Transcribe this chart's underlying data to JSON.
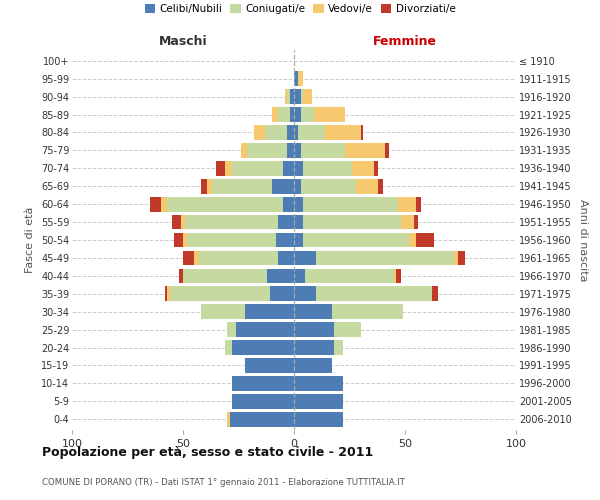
{
  "age_groups": [
    "0-4",
    "5-9",
    "10-14",
    "15-19",
    "20-24",
    "25-29",
    "30-34",
    "35-39",
    "40-44",
    "45-49",
    "50-54",
    "55-59",
    "60-64",
    "65-69",
    "70-74",
    "75-79",
    "80-84",
    "85-89",
    "90-94",
    "95-99",
    "100+"
  ],
  "birth_years": [
    "2006-2010",
    "2001-2005",
    "1996-2000",
    "1991-1995",
    "1986-1990",
    "1981-1985",
    "1976-1980",
    "1971-1975",
    "1966-1970",
    "1961-1965",
    "1956-1960",
    "1951-1955",
    "1946-1950",
    "1941-1945",
    "1936-1940",
    "1931-1935",
    "1926-1930",
    "1921-1925",
    "1916-1920",
    "1911-1915",
    "≤ 1910"
  ],
  "males": {
    "celibi": [
      29,
      28,
      28,
      22,
      28,
      26,
      22,
      11,
      12,
      7,
      8,
      7,
      5,
      10,
      5,
      3,
      3,
      2,
      2,
      0,
      0
    ],
    "coniugati": [
      0,
      0,
      0,
      0,
      3,
      4,
      20,
      45,
      38,
      36,
      40,
      42,
      52,
      27,
      23,
      18,
      10,
      5,
      1,
      0,
      0
    ],
    "vedovi": [
      1,
      0,
      0,
      0,
      0,
      0,
      0,
      1,
      0,
      2,
      2,
      2,
      3,
      2,
      3,
      3,
      5,
      3,
      1,
      0,
      0
    ],
    "divorziati": [
      0,
      0,
      0,
      0,
      0,
      0,
      0,
      1,
      2,
      5,
      4,
      4,
      5,
      3,
      4,
      0,
      0,
      0,
      0,
      0,
      0
    ]
  },
  "females": {
    "nubili": [
      22,
      22,
      22,
      17,
      18,
      18,
      17,
      10,
      5,
      10,
      4,
      4,
      4,
      3,
      4,
      3,
      2,
      3,
      3,
      2,
      0
    ],
    "coniugate": [
      0,
      0,
      0,
      0,
      4,
      12,
      32,
      52,
      40,
      62,
      48,
      44,
      43,
      25,
      22,
      20,
      12,
      6,
      1,
      0,
      0
    ],
    "vedove": [
      0,
      0,
      0,
      0,
      0,
      0,
      0,
      0,
      1,
      2,
      3,
      6,
      8,
      10,
      10,
      18,
      16,
      14,
      4,
      2,
      0
    ],
    "divorziate": [
      0,
      0,
      0,
      0,
      0,
      0,
      0,
      3,
      2,
      3,
      8,
      2,
      2,
      2,
      2,
      2,
      1,
      0,
      0,
      0,
      0
    ]
  },
  "color_celibi": "#4e7db5",
  "color_coniugati": "#c5d9a0",
  "color_vedovi": "#f7c96e",
  "color_divorziati": "#c0392b",
  "title": "Popolazione per età, sesso e stato civile - 2011",
  "subtitle": "COMUNE DI PORANO (TR) - Dati ISTAT 1° gennaio 2011 - Elaborazione TUTTITALIA.IT",
  "xlabel_left": "Maschi",
  "xlabel_right": "Femmine",
  "ylabel_left": "Fasce di età",
  "ylabel_right": "Anni di nascita",
  "xlim": 100,
  "legend_labels": [
    "Celibi/Nubili",
    "Coniugati/e",
    "Vedovi/e",
    "Divorziati/e"
  ],
  "bg_color": "#ffffff",
  "grid_color": "#cccccc",
  "bar_height": 0.82
}
